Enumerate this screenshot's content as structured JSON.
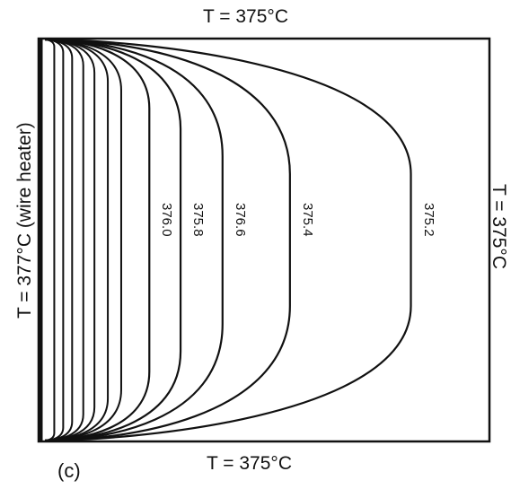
{
  "figure": {
    "panel_label": "(c)",
    "boundaries": {
      "top": "T = 375°C",
      "bottom": "T = 375°C",
      "left": "T = 377°C (wire heater)",
      "right": "T = 375°C"
    },
    "isotherms": [
      {
        "label": "376.0",
        "depth": 0.238
      },
      {
        "label": "375.8",
        "depth": 0.308
      },
      {
        "label": "376.6",
        "depth": 0.402
      },
      {
        "label": "375.4",
        "depth": 0.553
      },
      {
        "label": "375.2",
        "depth": 0.824
      }
    ],
    "inner_isotherm_depths": [
      0.025,
      0.045,
      0.065,
      0.09,
      0.115,
      0.145,
      0.175
    ]
  }
}
